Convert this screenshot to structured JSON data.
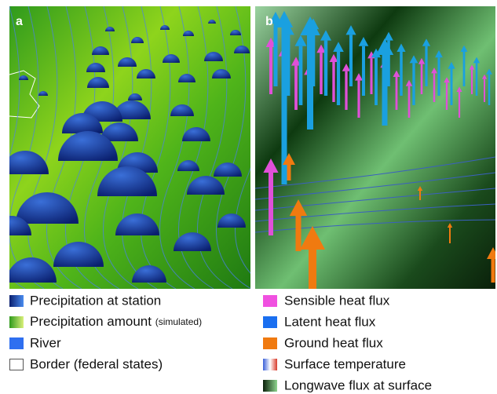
{
  "panels": [
    {
      "label": "a"
    },
    {
      "label": "b"
    }
  ],
  "legend": {
    "left": [
      {
        "text": "Precipitation at station"
      },
      {
        "text": "Precipitation amount",
        "note": "(simulated)"
      },
      {
        "text": "River"
      },
      {
        "text": "Border (federal states)"
      }
    ],
    "right": [
      {
        "text": "Sensible heat flux"
      },
      {
        "text": "Latent heat flux"
      },
      {
        "text": "Ground heat flux"
      },
      {
        "text": "Surface temperature"
      },
      {
        "text": "Longwave flux at surface"
      }
    ]
  }
}
